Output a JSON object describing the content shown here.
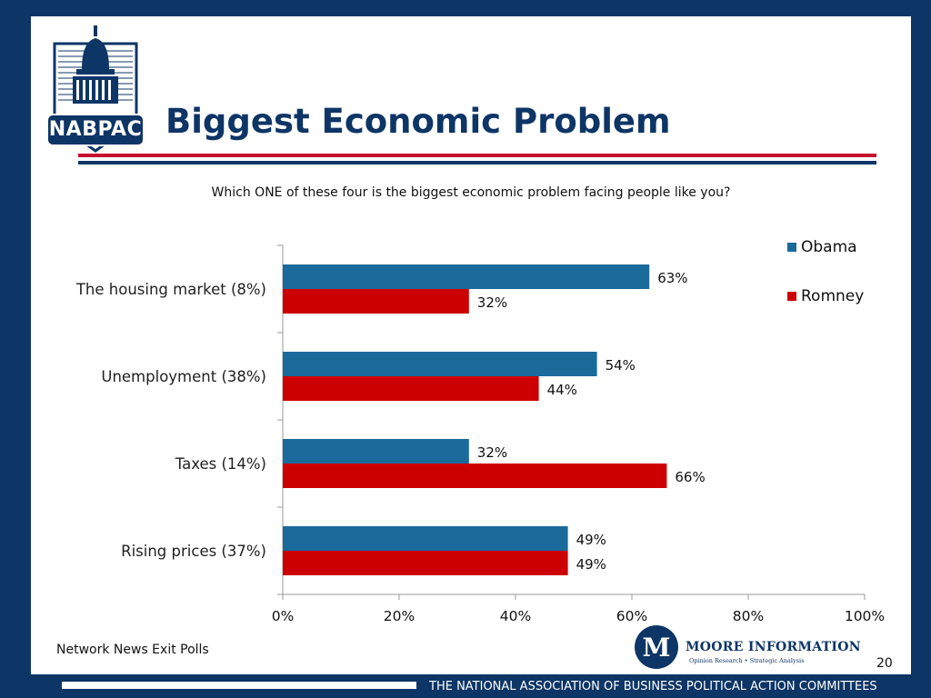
{
  "header": {
    "title": "Biggest Economic Problem",
    "logo_text": "NABPAC"
  },
  "colors": {
    "navy": "#0d3566",
    "red": "#c8102e",
    "obama": "#1a6a9c",
    "romney": "#cc0000"
  },
  "chart_data": {
    "type": "bar",
    "orientation": "horizontal",
    "title": "Which ONE of these four is the biggest economic problem facing people like you?",
    "categories": [
      "The housing market (8%)",
      "Unemployment (38%)",
      "Taxes (14%)",
      "Rising prices (37%)"
    ],
    "series": [
      {
        "name": "Obama",
        "values": [
          63,
          54,
          32,
          49
        ],
        "color": "#1a6a9c"
      },
      {
        "name": "Romney",
        "values": [
          32,
          44,
          66,
          49
        ],
        "color": "#cc0000"
      }
    ],
    "value_format": "percent",
    "xlim": [
      0,
      100
    ],
    "xticks": [
      0,
      20,
      40,
      60,
      80,
      100
    ],
    "xtick_labels": [
      "0%",
      "20%",
      "40%",
      "60%",
      "80%",
      "100%"
    ],
    "grid": false,
    "legend_position": "top-right"
  },
  "source": "Network News Exit Polls",
  "branding": {
    "moore_name": "Moore Information",
    "moore_tagline": "Opinion Research • Strategic Analysis",
    "moore_monogram": "M"
  },
  "page_number": "20",
  "footer_text": "THE NATIONAL ASSOCIATION OF BUSINESS POLITICAL ACTION COMMITTEES"
}
